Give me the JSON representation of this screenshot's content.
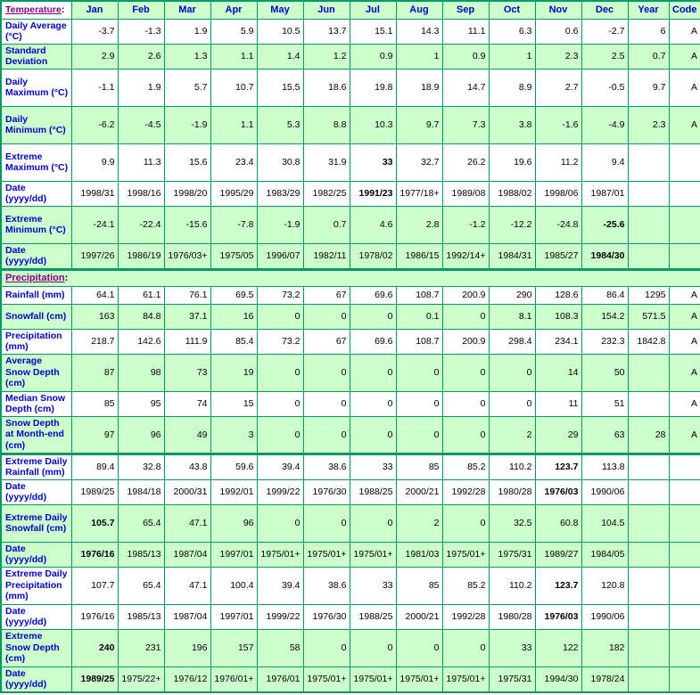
{
  "colors": {
    "row_green": "#ccffcc",
    "border_green": "#009966",
    "label_blue": "#0000cc",
    "heading_purple": "#800080",
    "value_black": "#000000"
  },
  "chart_data": {
    "type": "table",
    "columns": {
      "months": [
        "Jan",
        "Feb",
        "Mar",
        "Apr",
        "May",
        "Jun",
        "Jul",
        "Aug",
        "Sep",
        "Oct",
        "Nov",
        "Dec"
      ],
      "year": "Year",
      "code": "Code"
    },
    "sections": [
      {
        "heading": "Temperature",
        "heading_suffix": ":",
        "rows": [
          {
            "label": "Daily Average (°C)",
            "values": [
              "-3.7",
              "-1.3",
              "1.9",
              "5.9",
              "10.5",
              "13.7",
              "15.1",
              "14.3",
              "11.1",
              "6.3",
              "0.6",
              "-2.7"
            ],
            "year": "6",
            "code": "A",
            "shaded": false,
            "bold_month": null,
            "lines": 2
          },
          {
            "label": "Standard Deviation",
            "values": [
              "2.9",
              "2.6",
              "1.3",
              "1.1",
              "1.4",
              "1.2",
              "0.9",
              "1",
              "0.9",
              "1",
              "2.3",
              "2.5"
            ],
            "year": "0.7",
            "code": "A",
            "shaded": true,
            "bold_month": null,
            "lines": 2
          },
          {
            "label": "Daily Maximum (°C)",
            "values": [
              "-1.1",
              "1.9",
              "5.7",
              "10.7",
              "15.5",
              "18.6",
              "19.8",
              "18.9",
              "14.7",
              "8.9",
              "2.7",
              "-0.5"
            ],
            "year": "9.7",
            "code": "A",
            "shaded": false,
            "bold_month": null,
            "lines": 3
          },
          {
            "label": "Daily Minimum (°C)",
            "values": [
              "-6.2",
              "-4.5",
              "-1.9",
              "1.1",
              "5.3",
              "8.8",
              "10.3",
              "9.7",
              "7.3",
              "3.8",
              "-1.6",
              "-4.9"
            ],
            "year": "2.3",
            "code": "A",
            "shaded": true,
            "bold_month": null,
            "lines": 3
          },
          {
            "label": "Extreme Maximum (°C)",
            "values": [
              "9.9",
              "11.3",
              "15.6",
              "23.4",
              "30.8",
              "31.9",
              "33",
              "32.7",
              "26.2",
              "19.6",
              "11.2",
              "9.4"
            ],
            "year": "",
            "code": "",
            "shaded": false,
            "bold_month": 6,
            "lines": 3
          },
          {
            "label": "Date (yyyy/dd)",
            "values": [
              "1998/31",
              "1998/16",
              "1998/20",
              "1995/29",
              "1983/29",
              "1982/25",
              "1991/23",
              "1977/18+",
              "1989/08",
              "1988/02",
              "1998/06",
              "1987/01"
            ],
            "year": "",
            "code": "",
            "shaded": false,
            "bold_month": 6,
            "lines": 2
          },
          {
            "label": "Extreme Minimum (°C)",
            "values": [
              "-24.1",
              "-22.4",
              "-15.6",
              "-7.8",
              "-1.9",
              "0.7",
              "4.6",
              "2.8",
              "-1.2",
              "-12.2",
              "-24.8",
              "-25.6"
            ],
            "year": "",
            "code": "",
            "shaded": true,
            "bold_month": 11,
            "lines": 3
          },
          {
            "label": "Date (yyyy/dd)",
            "values": [
              "1997/26",
              "1986/19",
              "1976/03+",
              "1975/05",
              "1996/07",
              "1982/11",
              "1978/02",
              "1986/15",
              "1992/14+",
              "1984/31",
              "1985/27",
              "1984/30"
            ],
            "year": "",
            "code": "",
            "shaded": true,
            "bold_month": 11,
            "lines": 2
          }
        ]
      },
      {
        "heading": "Precipitation",
        "heading_suffix": ":",
        "rows": [
          {
            "label": "Rainfall (mm)",
            "values": [
              "64.1",
              "61.1",
              "76.1",
              "69.5",
              "73.2",
              "67",
              "69.6",
              "108.7",
              "200.9",
              "290",
              "128.6",
              "86.4"
            ],
            "year": "1295",
            "code": "A",
            "shaded": false,
            "bold_month": null,
            "lines": 1
          },
          {
            "label": "Snowfall (cm)",
            "values": [
              "163",
              "84.8",
              "37.1",
              "16",
              "0",
              "0",
              "0",
              "0.1",
              "0",
              "8.1",
              "108.3",
              "154.2"
            ],
            "year": "571.5",
            "code": "A",
            "shaded": true,
            "bold_month": null,
            "lines": 2
          },
          {
            "label": "Precipitation (mm)",
            "values": [
              "218.7",
              "142.6",
              "111.9",
              "85.4",
              "73.2",
              "67",
              "69.6",
              "108.7",
              "200.9",
              "298.4",
              "234.1",
              "232.3"
            ],
            "year": "1842.8",
            "code": "A",
            "shaded": false,
            "bold_month": null,
            "lines": 2
          },
          {
            "label": "Average Snow Depth (cm)",
            "values": [
              "87",
              "98",
              "73",
              "19",
              "0",
              "0",
              "0",
              "0",
              "0",
              "0",
              "14",
              "50"
            ],
            "year": "",
            "code": "A",
            "shaded": true,
            "bold_month": null,
            "lines": 3
          },
          {
            "label": "Median Snow Depth (cm)",
            "values": [
              "85",
              "95",
              "74",
              "15",
              "0",
              "0",
              "0",
              "0",
              "0",
              "0",
              "11",
              "51"
            ],
            "year": "",
            "code": "A",
            "shaded": false,
            "bold_month": null,
            "lines": 2
          },
          {
            "label": "Snow Depth at Month-end (cm)",
            "values": [
              "97",
              "96",
              "49",
              "3",
              "0",
              "0",
              "0",
              "0",
              "0",
              "2",
              "29",
              "63"
            ],
            "year": "28",
            "code": "A",
            "shaded": true,
            "bold_month": null,
            "lines": 3
          },
          {
            "label": "Extreme Daily Rainfall (mm)",
            "values": [
              "89.4",
              "32.8",
              "43.8",
              "59.6",
              "39.4",
              "38.6",
              "33",
              "85",
              "85.2",
              "110.2",
              "123.7",
              "113.8"
            ],
            "year": "",
            "code": "",
            "shaded": false,
            "bold_month": 10,
            "lines": 2,
            "thick_top": true
          },
          {
            "label": "Date (yyyy/dd)",
            "values": [
              "1989/25",
              "1984/18",
              "2000/31",
              "1992/01",
              "1999/22",
              "1976/30",
              "1988/25",
              "2000/21",
              "1992/28",
              "1980/28",
              "1976/03",
              "1990/06"
            ],
            "year": "",
            "code": "",
            "shaded": false,
            "bold_month": 10,
            "lines": 2
          },
          {
            "label": "Extreme Daily Snowfall (cm)",
            "values": [
              "105.7",
              "65.4",
              "47.1",
              "96",
              "0",
              "0",
              "0",
              "2",
              "0",
              "32.5",
              "60.8",
              "104.5"
            ],
            "year": "",
            "code": "",
            "shaded": true,
            "bold_month": 0,
            "lines": 3
          },
          {
            "label": "Date (yyyy/dd)",
            "values": [
              "1976/16",
              "1985/13",
              "1987/04",
              "1997/01",
              "1975/01+",
              "1975/01+",
              "1975/01+",
              "1981/03",
              "1975/01+",
              "1975/31",
              "1989/27",
              "1984/05"
            ],
            "year": "",
            "code": "",
            "shaded": true,
            "bold_month": 0,
            "lines": 2
          },
          {
            "label": "Extreme Daily Precipitation (mm)",
            "values": [
              "107.7",
              "65.4",
              "47.1",
              "100.4",
              "39.4",
              "38.6",
              "33",
              "85",
              "85.2",
              "110.2",
              "123.7",
              "120.8"
            ],
            "year": "",
            "code": "",
            "shaded": false,
            "bold_month": 10,
            "lines": 3
          },
          {
            "label": "Date (yyyy/dd)",
            "values": [
              "1976/16",
              "1985/13",
              "1987/04",
              "1997/01",
              "1999/22",
              "1976/30",
              "1988/25",
              "2000/21",
              "1992/28",
              "1980/28",
              "1976/03",
              "1990/06"
            ],
            "year": "",
            "code": "",
            "shaded": false,
            "bold_month": 10,
            "lines": 2
          },
          {
            "label": "Extreme Snow Depth (cm)",
            "values": [
              "240",
              "231",
              "196",
              "157",
              "58",
              "0",
              "0",
              "0",
              "0",
              "33",
              "122",
              "182"
            ],
            "year": "",
            "code": "",
            "shaded": true,
            "bold_month": 0,
            "lines": 3
          },
          {
            "label": "Date (yyyy/dd)",
            "values": [
              "1989/25",
              "1975/22+",
              "1976/12",
              "1976/01+",
              "1976/01",
              "1975/01+",
              "1975/01+",
              "1975/01+",
              "1975/01+",
              "1975/31",
              "1994/30",
              "1978/24"
            ],
            "year": "",
            "code": "",
            "shaded": true,
            "bold_month": 0,
            "lines": 2
          }
        ]
      }
    ]
  }
}
